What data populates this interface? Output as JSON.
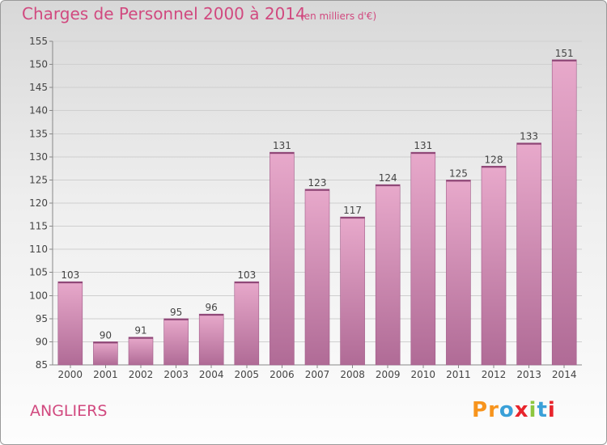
{
  "header": {
    "title": "Charges de Personnel 2000 à 2014",
    "subtitle": "(en milliers d'€)"
  },
  "footer": {
    "commune": "ANGLIERS",
    "logo_text": "Proxiti"
  },
  "colors": {
    "accent": "#d1497f",
    "bar_top": "#e8a9cb",
    "bar_bottom": "#b06b96",
    "logo_letters": [
      "#f7941d",
      "#f7941d",
      "#3aa0d8",
      "#e8242c",
      "#8dc63f",
      "#3aa0d8",
      "#e8242c"
    ]
  },
  "chart_data": {
    "type": "bar",
    "title": "Charges de Personnel 2000 à 2014",
    "subtitle": "(en milliers d'€)",
    "categories": [
      "2000",
      "2001",
      "2002",
      "2003",
      "2004",
      "2005",
      "2006",
      "2007",
      "2008",
      "2009",
      "2010",
      "2011",
      "2012",
      "2013",
      "2014"
    ],
    "values": [
      103,
      90,
      91,
      95,
      96,
      103,
      131,
      123,
      117,
      124,
      131,
      125,
      128,
      133,
      151
    ],
    "ylim": [
      85,
      155
    ],
    "yticks": [
      85,
      90,
      95,
      100,
      105,
      110,
      115,
      120,
      125,
      130,
      135,
      140,
      145,
      150,
      155
    ],
    "grid": true,
    "xlabel": "",
    "ylabel": ""
  }
}
